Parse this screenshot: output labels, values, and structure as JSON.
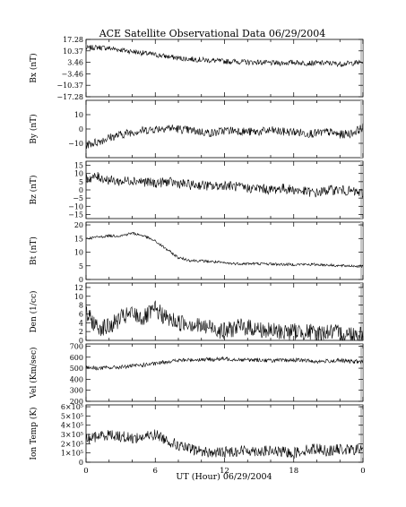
{
  "chart_data": {
    "type": "line",
    "title": "ACE Satellite Observational Data   06/29/2004",
    "xlabel": "UT (Hour)   06/29/2004",
    "x_ticks": [
      "0",
      "6",
      "12",
      "18",
      "0"
    ],
    "xlim": [
      0,
      24
    ],
    "panels": [
      {
        "ylabel": "Bx (nT)",
        "ylim": [
          -17.28,
          17.28
        ],
        "yticks": [
          -17.28,
          -10.37,
          -3.46,
          3.46,
          10.37,
          17.28
        ],
        "ytick_labels": [
          "−17.28",
          "−10.37",
          "−3.46",
          "3.46",
          "10.37",
          "17.28"
        ],
        "series": [
          {
            "x": [
              0,
              1,
              2,
              3,
              4,
              5,
              6,
              7,
              8,
              9,
              10,
              11,
              12,
              13,
              14,
              15,
              16,
              17,
              18,
              19,
              20,
              21,
              22,
              23,
              24
            ],
            "y": [
              12,
              12.5,
              12,
              11,
              10,
              9,
              8,
              7,
              6,
              5.5,
              5,
              4.5,
              4,
              4,
              3.5,
              3.5,
              3,
              3,
              3.5,
              3,
              3,
              3,
              2.5,
              3,
              3.5
            ],
            "noise": 1.6
          }
        ]
      },
      {
        "ylabel": "By (nT)",
        "ylim": [
          -20,
          20
        ],
        "yticks": [
          -10,
          0,
          10
        ],
        "ytick_labels": [
          "−10",
          "0",
          "10"
        ],
        "series": [
          {
            "x": [
              0,
              1,
              2,
              3,
              4,
              5,
              6,
              7,
              8,
              9,
              10,
              11,
              12,
              13,
              14,
              15,
              16,
              17,
              18,
              19,
              20,
              21,
              22,
              23,
              24
            ],
            "y": [
              -11,
              -9,
              -6,
              -4,
              -2,
              -1,
              0,
              1,
              0,
              -1,
              -2,
              -3,
              -1,
              -1,
              -2,
              -2,
              -1,
              -2,
              -2,
              -3,
              -3,
              -2,
              -4,
              -3,
              1
            ],
            "noise": 3
          }
        ]
      },
      {
        "ylabel": "Bz (nT)",
        "ylim": [
          -17.5,
          17.5
        ],
        "yticks": [
          -15,
          -10,
          -5,
          0,
          5,
          10,
          15
        ],
        "ytick_labels": [
          "−15",
          "−10",
          "−5",
          "0",
          "5",
          "10",
          "15"
        ],
        "series": [
          {
            "x": [
              0,
              1,
              2,
              3,
              4,
              5,
              6,
              7,
              8,
              9,
              10,
              11,
              12,
              13,
              14,
              15,
              16,
              17,
              18,
              19,
              20,
              21,
              22,
              23,
              24
            ],
            "y": [
              7,
              8,
              6,
              5,
              6,
              5,
              4,
              5,
              4,
              3,
              3,
              2,
              3,
              2,
              1,
              1,
              0,
              1,
              0,
              -1,
              -2,
              0,
              0,
              -1,
              -2
            ],
            "noise": 3
          }
        ]
      },
      {
        "ylabel": "Bt (nT)",
        "ylim": [
          0,
          21
        ],
        "yticks": [
          0,
          5,
          10,
          15,
          20
        ],
        "ytick_labels": [
          "0",
          "5",
          "10",
          "15",
          "20"
        ],
        "series": [
          {
            "x": [
              0,
              1,
              2,
              3,
              4,
              5,
              6,
              7,
              8,
              9,
              10,
              11,
              12,
              13,
              14,
              15,
              16,
              17,
              18,
              19,
              20,
              21,
              22,
              23,
              24
            ],
            "y": [
              15,
              15.5,
              16,
              16,
              17,
              16,
              14,
              11,
              8,
              7,
              6.8,
              6.5,
              6,
              5.8,
              5.8,
              5.8,
              5.7,
              5.5,
              5.5,
              5.5,
              5.5,
              5.3,
              5,
              5,
              4.8
            ],
            "noise": 0.5
          }
        ]
      },
      {
        "ylabel": "Den (1/cc)",
        "ylim": [
          0,
          13
        ],
        "yticks": [
          0,
          2,
          4,
          6,
          8,
          10,
          12
        ],
        "ytick_labels": [
          "0",
          "2",
          "4",
          "6",
          "8",
          "10",
          "12"
        ],
        "series": [
          {
            "x": [
              0,
              1,
              2,
              3,
              4,
              5,
              6,
              7,
              8,
              9,
              10,
              11,
              12,
              13,
              14,
              15,
              16,
              17,
              18,
              19,
              20,
              21,
              22,
              23,
              24
            ],
            "y": [
              6,
              3,
              3,
              5,
              6,
              5,
              7,
              5,
              4,
              4,
              3,
              3,
              2,
              3,
              3,
              2.5,
              2,
              2,
              2,
              2,
              1.5,
              2,
              1.5,
              1.5,
              1.5
            ],
            "noise": 2
          }
        ]
      },
      {
        "ylabel": "Vel (Km/sec)",
        "ylim": [
          200,
          720
        ],
        "yticks": [
          200,
          300,
          400,
          500,
          600,
          700
        ],
        "ytick_labels": [
          "200",
          "300",
          "400",
          "500",
          "600",
          "700"
        ],
        "series": [
          {
            "x": [
              0,
              1,
              2,
              3,
              4,
              5,
              6,
              7,
              8,
              9,
              10,
              11,
              12,
              13,
              14,
              15,
              16,
              17,
              18,
              19,
              20,
              21,
              22,
              23,
              24
            ],
            "y": [
              510,
              500,
              505,
              510,
              520,
              530,
              540,
              560,
              570,
              575,
              580,
              580,
              585,
              580,
              575,
              575,
              570,
              570,
              575,
              570,
              560,
              565,
              570,
              560,
              560
            ],
            "noise": 18
          }
        ]
      },
      {
        "ylabel": "Ion Temp (K)",
        "ylim": [
          0,
          620000
        ],
        "yticks": [
          0,
          100000,
          200000,
          300000,
          400000,
          500000,
          600000
        ],
        "ytick_labels": [
          "0",
          "1×10⁵",
          "2×10⁵",
          "3×10⁵",
          "4×10⁵",
          "5×10⁵",
          "6×10⁵"
        ],
        "series": [
          {
            "x": [
              0,
              1,
              2,
              3,
              4,
              5,
              6,
              7,
              8,
              9,
              10,
              11,
              12,
              13,
              14,
              15,
              16,
              17,
              18,
              19,
              20,
              21,
              22,
              23,
              24
            ],
            "y": [
              250000,
              280000,
              300000,
              280000,
              260000,
              270000,
              300000,
              240000,
              180000,
              140000,
              120000,
              100000,
              110000,
              120000,
              130000,
              120000,
              120000,
              110000,
              100000,
              130000,
              150000,
              120000,
              140000,
              130000,
              150000
            ],
            "noise": 60000
          }
        ]
      }
    ]
  }
}
